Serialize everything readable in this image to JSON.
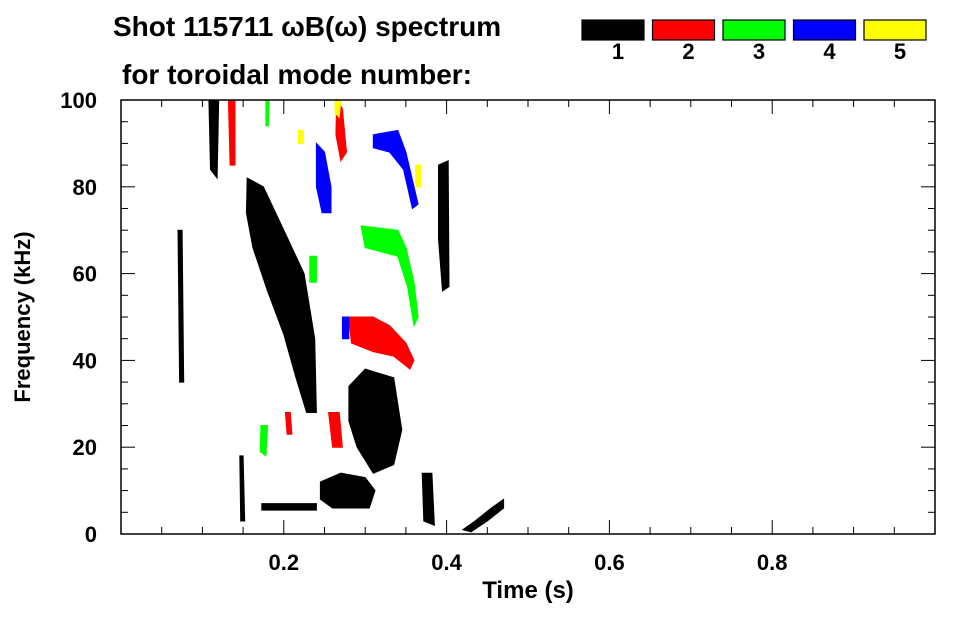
{
  "chart_data": {
    "type": "heatmap",
    "title_line1": "Shot 115711 ωB(ω) spectrum",
    "title_line2": "for toroidal mode number:",
    "xlabel": "Time (s)",
    "ylabel": "Frequency (kHz)",
    "xlim": [
      0,
      1.0
    ],
    "ylim": [
      0,
      100
    ],
    "x_ticks": [
      0.2,
      0.4,
      0.6,
      0.8
    ],
    "x_tick_labels": [
      "0.2",
      "0.4",
      "0.6",
      "0.8"
    ],
    "x_minor_step": 0.05,
    "y_ticks": [
      0,
      20,
      40,
      60,
      80,
      100
    ],
    "y_tick_labels": [
      "0",
      "20",
      "40",
      "60",
      "80",
      "100"
    ],
    "y_minor_step": 5,
    "grid": false,
    "legend": {
      "placement": "top-right",
      "entries": [
        {
          "label": "1",
          "color": "#000000"
        },
        {
          "label": "2",
          "color": "#ff0000"
        },
        {
          "label": "3",
          "color": "#00ff00"
        },
        {
          "label": "4",
          "color": "#0000ff"
        },
        {
          "label": "5",
          "color": "#ffff00"
        }
      ]
    },
    "series": [
      {
        "name": "1",
        "color": "#000000",
        "regions": [
          [
            [
              0.07,
              70
            ],
            [
              0.075,
              70
            ],
            [
              0.077,
              35
            ],
            [
              0.072,
              35
            ]
          ],
          [
            [
              0.108,
              100
            ],
            [
              0.12,
              100
            ],
            [
              0.118,
              82
            ],
            [
              0.11,
              84
            ]
          ],
          [
            [
              0.155,
              82
            ],
            [
              0.175,
              80
            ],
            [
              0.2,
              70
            ],
            [
              0.225,
              60
            ],
            [
              0.238,
              45
            ],
            [
              0.24,
              28
            ],
            [
              0.228,
              28
            ],
            [
              0.215,
              36
            ],
            [
              0.2,
              46
            ],
            [
              0.18,
              56
            ],
            [
              0.162,
              66
            ],
            [
              0.154,
              74
            ]
          ],
          [
            [
              0.28,
              34
            ],
            [
              0.3,
              38
            ],
            [
              0.335,
              36
            ],
            [
              0.345,
              24
            ],
            [
              0.335,
              16
            ],
            [
              0.31,
              14
            ],
            [
              0.29,
              20
            ],
            [
              0.28,
              26
            ]
          ],
          [
            [
              0.245,
              12
            ],
            [
              0.27,
              14
            ],
            [
              0.3,
              13
            ],
            [
              0.312,
              10
            ],
            [
              0.305,
              6
            ],
            [
              0.26,
              6
            ],
            [
              0.245,
              8
            ]
          ],
          [
            [
              0.173,
              7
            ],
            [
              0.24,
              7
            ],
            [
              0.24,
              5.5
            ],
            [
              0.173,
              5.5
            ]
          ],
          [
            [
              0.146,
              18
            ],
            [
              0.15,
              18
            ],
            [
              0.152,
              3
            ],
            [
              0.147,
              3
            ]
          ],
          [
            [
              0.37,
              14
            ],
            [
              0.382,
              14
            ],
            [
              0.385,
              2
            ],
            [
              0.372,
              3
            ]
          ],
          [
            [
              0.39,
              85
            ],
            [
              0.402,
              86
            ],
            [
              0.403,
              57
            ],
            [
              0.395,
              56
            ],
            [
              0.39,
              68
            ]
          ],
          [
            [
              0.42,
              1
            ],
            [
              0.435,
              3
            ],
            [
              0.455,
              6
            ],
            [
              0.47,
              8
            ],
            [
              0.47,
              6
            ],
            [
              0.45,
              3
            ],
            [
              0.43,
              0.5
            ]
          ]
        ]
      },
      {
        "name": "2",
        "color": "#ff0000",
        "regions": [
          [
            [
              0.132,
              100
            ],
            [
              0.14,
              100
            ],
            [
              0.14,
              85
            ],
            [
              0.134,
              85
            ]
          ],
          [
            [
              0.265,
              100
            ],
            [
              0.272,
              98
            ],
            [
              0.277,
              88
            ],
            [
              0.27,
              86
            ],
            [
              0.264,
              92
            ]
          ],
          [
            [
              0.28,
              50
            ],
            [
              0.31,
              50
            ],
            [
              0.33,
              48
            ],
            [
              0.35,
              44
            ],
            [
              0.36,
              40
            ],
            [
              0.355,
              38
            ],
            [
              0.335,
              41
            ],
            [
              0.31,
              42
            ],
            [
              0.283,
              44
            ]
          ],
          [
            [
              0.255,
              28
            ],
            [
              0.268,
              28
            ],
            [
              0.272,
              20
            ],
            [
              0.26,
              20
            ]
          ],
          [
            [
              0.202,
              28
            ],
            [
              0.208,
              28
            ],
            [
              0.21,
              23
            ],
            [
              0.204,
              23
            ]
          ]
        ]
      },
      {
        "name": "3",
        "color": "#00ff00",
        "regions": [
          [
            [
              0.178,
              100
            ],
            [
              0.182,
              100
            ],
            [
              0.181,
              94
            ],
            [
              0.178,
              94
            ]
          ],
          [
            [
              0.295,
              71
            ],
            [
              0.34,
              70
            ],
            [
              0.35,
              66
            ],
            [
              0.36,
              58
            ],
            [
              0.365,
              50
            ],
            [
              0.36,
              48
            ],
            [
              0.352,
              57
            ],
            [
              0.34,
              64
            ],
            [
              0.3,
              66
            ]
          ],
          [
            [
              0.232,
              64
            ],
            [
              0.24,
              64
            ],
            [
              0.24,
              58
            ],
            [
              0.232,
              58
            ]
          ],
          [
            [
              0.172,
              25
            ],
            [
              0.18,
              25
            ],
            [
              0.178,
              18
            ],
            [
              0.171,
              19
            ]
          ]
        ]
      },
      {
        "name": "4",
        "color": "#0000ff",
        "regions": [
          [
            [
              0.24,
              90
            ],
            [
              0.25,
              88
            ],
            [
              0.258,
              80
            ],
            [
              0.258,
              74
            ],
            [
              0.247,
              74
            ],
            [
              0.24,
              80
            ]
          ],
          [
            [
              0.31,
              92
            ],
            [
              0.34,
              93
            ],
            [
              0.35,
              88
            ],
            [
              0.36,
              80
            ],
            [
              0.365,
              76
            ],
            [
              0.358,
              75
            ],
            [
              0.347,
              84
            ],
            [
              0.33,
              88
            ],
            [
              0.31,
              89
            ]
          ],
          [
            [
              0.272,
              50
            ],
            [
              0.28,
              50
            ],
            [
              0.28,
              45
            ],
            [
              0.272,
              45
            ]
          ]
        ]
      },
      {
        "name": "5",
        "color": "#ffff00",
        "regions": [
          [
            [
              0.263,
              100
            ],
            [
              0.27,
              100
            ],
            [
              0.268,
              96
            ],
            [
              0.263,
              97
            ]
          ],
          [
            [
              0.362,
              85
            ],
            [
              0.368,
              85
            ],
            [
              0.368,
              80
            ],
            [
              0.362,
              80
            ]
          ],
          [
            [
              0.218,
              93
            ],
            [
              0.224,
              93
            ],
            [
              0.224,
              90
            ],
            [
              0.218,
              90
            ]
          ]
        ]
      }
    ]
  }
}
